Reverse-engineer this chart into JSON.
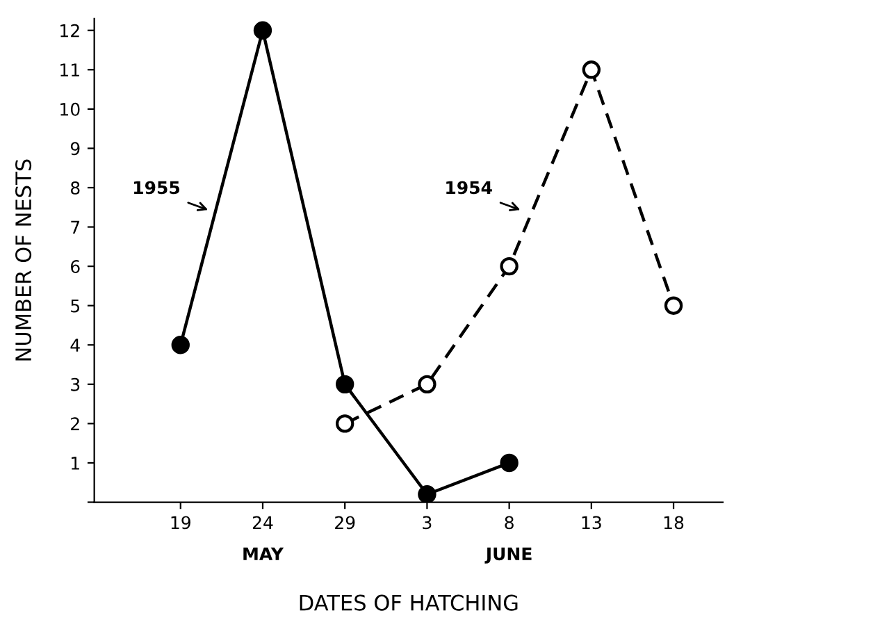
{
  "chart_data": {
    "type": "line",
    "xlabel": "DATES OF HATCHING",
    "ylabel": "NUMBER OF NESTS",
    "categories": [
      "19",
      "24",
      "29",
      "3",
      "8",
      "13",
      "18"
    ],
    "series": [
      {
        "name": "1955",
        "color": "#000000",
        "line_style": "solid",
        "values": [
          4,
          12,
          3,
          0.2,
          1,
          null,
          null
        ]
      },
      {
        "name": "1954",
        "color": "#000000",
        "line_style": "dashed",
        "values": [
          null,
          null,
          2,
          3,
          6,
          11,
          5
        ]
      }
    ],
    "annotations": [
      "MAY",
      "JUNE"
    ],
    "ylim": [
      0,
      12.3
    ],
    "yticks": [
      {
        "value": 0,
        "label": null
      },
      1,
      2,
      3,
      4,
      5,
      6,
      7,
      8,
      9,
      10,
      11,
      12
    ],
    "marker": "circle",
    "grid": false,
    "legend": false
  }
}
